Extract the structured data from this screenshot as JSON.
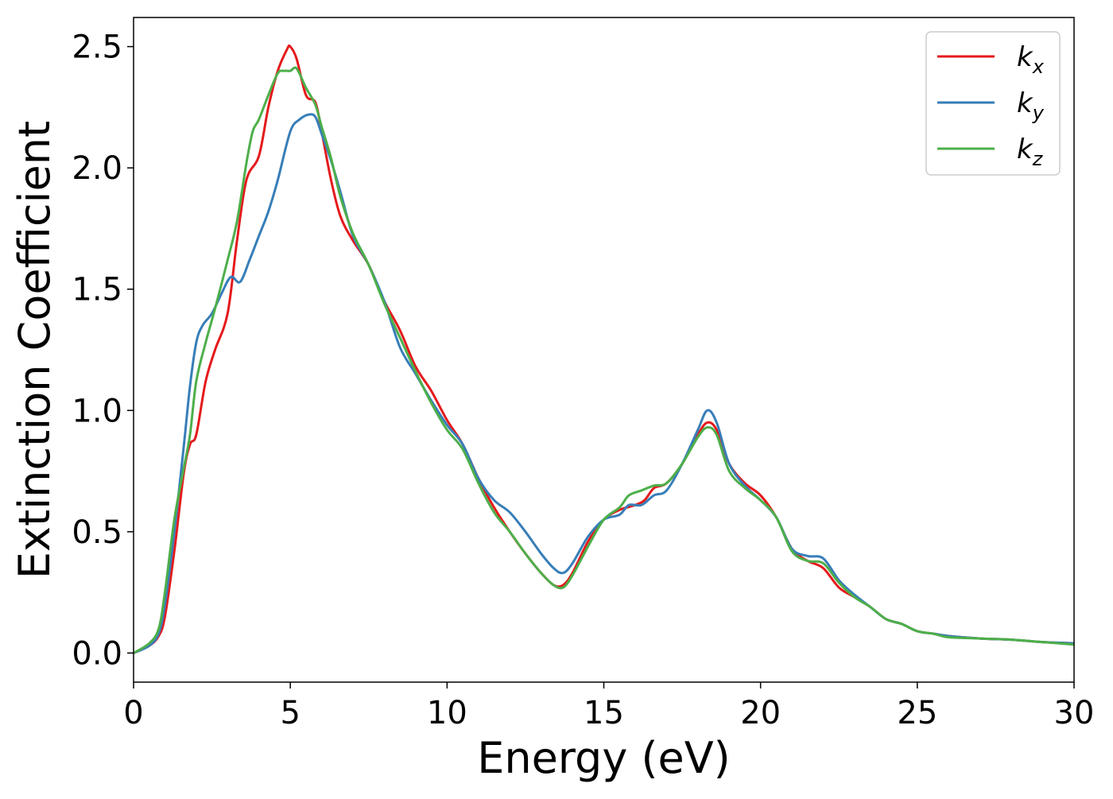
{
  "chart_data": {
    "type": "line",
    "title": "",
    "xlabel": "Energy (eV)",
    "ylabel": "Extinction Coefficient",
    "xlim": [
      0,
      30
    ],
    "ylim": [
      -0.12,
      2.62
    ],
    "xticks": [
      0,
      5,
      10,
      15,
      20,
      25,
      30
    ],
    "xtick_labels": [
      "0",
      "5",
      "10",
      "15",
      "20",
      "25",
      "30"
    ],
    "yticks": [
      0.0,
      0.5,
      1.0,
      1.5,
      2.0,
      2.5
    ],
    "ytick_labels": [
      "0.0",
      "0.5",
      "1.0",
      "1.5",
      "2.0",
      "2.5"
    ],
    "grid": false,
    "legend_position": "top-right",
    "series": [
      {
        "name": "k_x",
        "label_base": "k",
        "label_sub": "x",
        "color": "#e41a1c",
        "x": [
          0,
          0.5,
          0.8,
          1.0,
          1.3,
          1.6,
          1.8,
          2.0,
          2.3,
          2.6,
          3.0,
          3.3,
          3.6,
          4.0,
          4.3,
          4.6,
          4.9,
          5.0,
          5.2,
          5.5,
          5.8,
          6.0,
          6.3,
          6.6,
          7.0,
          7.5,
          8.0,
          8.5,
          9.0,
          9.5,
          10.0,
          10.5,
          11.0,
          11.5,
          12.0,
          12.5,
          13.0,
          13.4,
          13.7,
          14.0,
          14.5,
          15.0,
          15.5,
          16.0,
          16.3,
          16.6,
          17.0,
          17.5,
          18.0,
          18.3,
          18.6,
          19.0,
          19.5,
          20.0,
          20.5,
          21.0,
          21.5,
          22.0,
          22.5,
          23.0,
          23.5,
          24.0,
          24.5,
          25.0,
          25.5,
          26.0,
          27.0,
          28.0,
          29.0,
          30.0
        ],
        "values": [
          0.0,
          0.03,
          0.07,
          0.15,
          0.42,
          0.74,
          0.86,
          0.9,
          1.12,
          1.25,
          1.4,
          1.7,
          1.95,
          2.05,
          2.25,
          2.4,
          2.49,
          2.5,
          2.45,
          2.3,
          2.27,
          2.15,
          1.95,
          1.8,
          1.7,
          1.6,
          1.45,
          1.33,
          1.18,
          1.08,
          0.96,
          0.86,
          0.72,
          0.6,
          0.5,
          0.41,
          0.33,
          0.28,
          0.28,
          0.33,
          0.46,
          0.55,
          0.59,
          0.61,
          0.63,
          0.68,
          0.7,
          0.78,
          0.9,
          0.95,
          0.92,
          0.78,
          0.7,
          0.65,
          0.56,
          0.43,
          0.38,
          0.35,
          0.27,
          0.23,
          0.19,
          0.14,
          0.12,
          0.09,
          0.08,
          0.07,
          0.06,
          0.055,
          0.045,
          0.04
        ]
      },
      {
        "name": "k_y",
        "label_base": "k",
        "label_sub": "y",
        "color": "#377eb8",
        "x": [
          0,
          0.5,
          0.8,
          1.0,
          1.3,
          1.6,
          1.8,
          2.0,
          2.2,
          2.5,
          2.8,
          3.1,
          3.4,
          3.7,
          4.0,
          4.3,
          4.6,
          5.0,
          5.3,
          5.6,
          5.8,
          6.0,
          6.3,
          6.6,
          7.0,
          7.5,
          8.0,
          8.5,
          9.0,
          9.5,
          10.0,
          10.5,
          11.0,
          11.5,
          12.0,
          12.5,
          13.0,
          13.4,
          13.7,
          14.0,
          14.5,
          15.0,
          15.5,
          15.8,
          16.2,
          16.6,
          17.0,
          17.5,
          18.0,
          18.3,
          18.6,
          19.0,
          19.5,
          20.0,
          20.5,
          21.0,
          21.5,
          22.0,
          22.5,
          23.0,
          23.5,
          24.0,
          24.5,
          25.0,
          25.5,
          26.0,
          27.0,
          28.0,
          29.0,
          30.0
        ],
        "values": [
          0.0,
          0.03,
          0.08,
          0.2,
          0.5,
          0.85,
          1.1,
          1.28,
          1.35,
          1.4,
          1.48,
          1.55,
          1.53,
          1.62,
          1.72,
          1.82,
          1.95,
          2.15,
          2.2,
          2.22,
          2.21,
          2.14,
          2.03,
          1.9,
          1.72,
          1.6,
          1.45,
          1.26,
          1.15,
          1.04,
          0.94,
          0.86,
          0.72,
          0.63,
          0.58,
          0.5,
          0.41,
          0.35,
          0.33,
          0.37,
          0.48,
          0.55,
          0.57,
          0.61,
          0.61,
          0.65,
          0.67,
          0.78,
          0.92,
          1.0,
          0.95,
          0.78,
          0.69,
          0.63,
          0.56,
          0.43,
          0.4,
          0.39,
          0.3,
          0.24,
          0.19,
          0.14,
          0.12,
          0.09,
          0.08,
          0.07,
          0.06,
          0.055,
          0.045,
          0.04
        ]
      },
      {
        "name": "k_z",
        "label_base": "k",
        "label_sub": "z",
        "color": "#4daf4a",
        "x": [
          0,
          0.5,
          0.8,
          1.0,
          1.3,
          1.6,
          1.8,
          2.0,
          2.3,
          2.6,
          3.0,
          3.3,
          3.6,
          3.8,
          4.0,
          4.3,
          4.6,
          4.8,
          5.0,
          5.2,
          5.5,
          5.8,
          6.0,
          6.3,
          6.6,
          7.0,
          7.5,
          8.0,
          8.5,
          9.0,
          9.5,
          10.0,
          10.5,
          11.0,
          11.5,
          12.0,
          12.5,
          13.0,
          13.4,
          13.7,
          14.0,
          14.5,
          15.0,
          15.5,
          15.8,
          16.2,
          16.6,
          17.0,
          17.5,
          18.0,
          18.3,
          18.6,
          19.0,
          19.5,
          20.0,
          20.5,
          21.0,
          21.5,
          22.0,
          22.5,
          23.0,
          23.5,
          24.0,
          24.5,
          25.0,
          25.5,
          26.0,
          27.0,
          28.0,
          29.0,
          30.0
        ],
        "values": [
          0.0,
          0.04,
          0.1,
          0.25,
          0.55,
          0.76,
          0.9,
          1.12,
          1.28,
          1.42,
          1.62,
          1.78,
          2.02,
          2.15,
          2.2,
          2.3,
          2.39,
          2.4,
          2.4,
          2.41,
          2.33,
          2.26,
          2.17,
          2.04,
          1.88,
          1.73,
          1.6,
          1.44,
          1.3,
          1.16,
          1.03,
          0.92,
          0.84,
          0.7,
          0.58,
          0.5,
          0.41,
          0.33,
          0.28,
          0.27,
          0.32,
          0.44,
          0.55,
          0.6,
          0.65,
          0.67,
          0.69,
          0.7,
          0.78,
          0.89,
          0.93,
          0.9,
          0.75,
          0.68,
          0.63,
          0.56,
          0.42,
          0.38,
          0.37,
          0.29,
          0.23,
          0.19,
          0.14,
          0.12,
          0.09,
          0.08,
          0.065,
          0.06,
          0.055,
          0.045,
          0.035
        ]
      }
    ]
  }
}
